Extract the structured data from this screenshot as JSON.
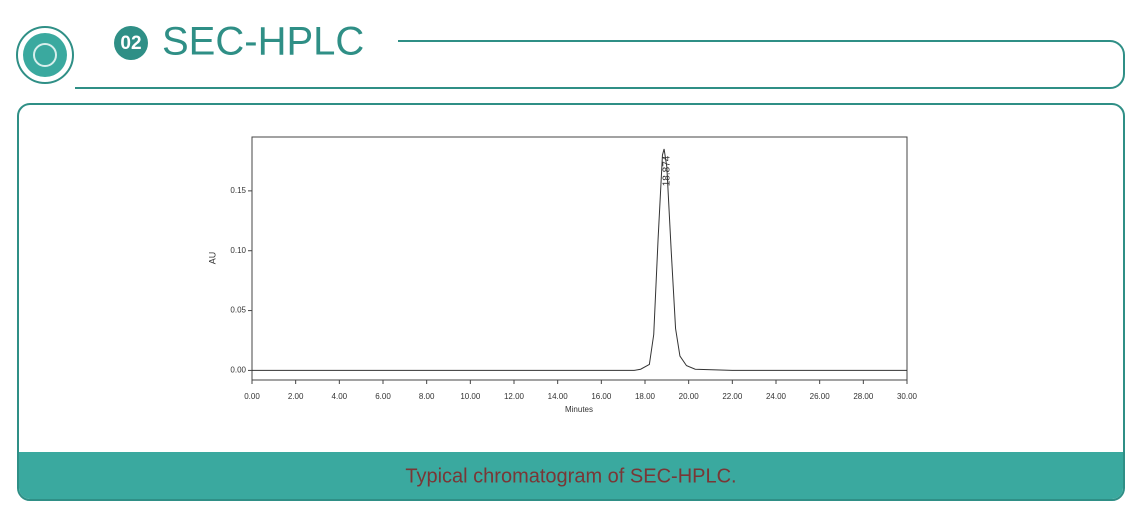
{
  "header": {
    "badge": "02",
    "title": "SEC-HPLC"
  },
  "caption": "Typical chromatogram of SEC-HPLC.",
  "chart_data": {
    "type": "line",
    "xlabel": "Minutes",
    "ylabel": "AU",
    "annotation": "18.874",
    "color": "#333333",
    "x": [
      0,
      5,
      10,
      14,
      17.5,
      17.8,
      18.2,
      18.4,
      18.6,
      18.8,
      18.874,
      19.0,
      19.2,
      19.4,
      19.6,
      19.9,
      20.3,
      22,
      26,
      30
    ],
    "values": [
      0,
      0,
      0,
      0,
      0,
      0.001,
      0.005,
      0.03,
      0.11,
      0.18,
      0.185,
      0.17,
      0.1,
      0.035,
      0.012,
      0.004,
      0.001,
      0,
      0,
      0
    ],
    "xlim": [
      0,
      30
    ],
    "ylim": [
      -0.008,
      0.195
    ],
    "xticks": [
      {
        "value": 0,
        "label": "0.00"
      },
      {
        "value": 2,
        "label": "2.00"
      },
      {
        "value": 4,
        "label": "4.00"
      },
      {
        "value": 6,
        "label": "6.00"
      },
      {
        "value": 8,
        "label": "8.00"
      },
      {
        "value": 10,
        "label": "10.00"
      },
      {
        "value": 12,
        "label": "12.00"
      },
      {
        "value": 14,
        "label": "14.00"
      },
      {
        "value": 16,
        "label": "16.00"
      },
      {
        "value": 18,
        "label": "18.00"
      },
      {
        "value": 20,
        "label": "20.00"
      },
      {
        "value": 22,
        "label": "22.00"
      },
      {
        "value": 24,
        "label": "24.00"
      },
      {
        "value": 26,
        "label": "26.00"
      },
      {
        "value": 28,
        "label": "28.00"
      },
      {
        "value": 30,
        "label": "30.00"
      }
    ],
    "yticks": [
      {
        "value": 0,
        "label": "0.00"
      },
      {
        "value": 0.05,
        "label": "0.05"
      },
      {
        "value": 0.1,
        "label": "0.10"
      },
      {
        "value": 0.15,
        "label": "0.15"
      }
    ]
  }
}
